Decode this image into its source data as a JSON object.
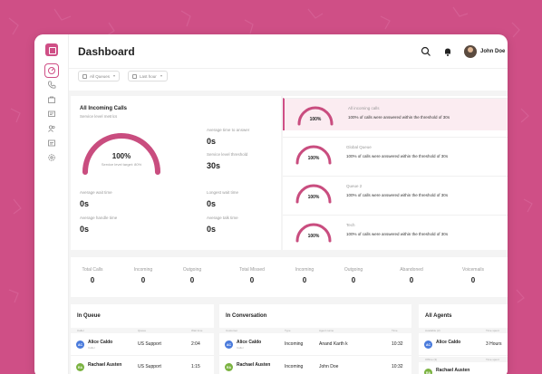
{
  "colors": {
    "brand": "#cf4f86",
    "gauge": "#c94d7f",
    "avatar_blue": "#4a7bdc",
    "avatar_green": "#7bb341"
  },
  "sidebar": {
    "icons": [
      "dashboard-icon",
      "phone-icon",
      "bag-icon",
      "message-icon",
      "users-icon",
      "report-icon",
      "gear-icon"
    ]
  },
  "header": {
    "title": "Dashboard",
    "user_name": "John Doe"
  },
  "filters": {
    "queues": "All Queues",
    "period": "Last hour"
  },
  "service": {
    "title": "All Incoming Calls",
    "subtitle": "Service level metrics",
    "gauge_value": "100%",
    "gauge_fraction": 1.0,
    "gauge_target": "Service level target: 80%",
    "metrics": [
      {
        "label": "Average time to answer",
        "value": "0s"
      },
      {
        "label": "Service level threshold",
        "value": "30s"
      },
      {
        "label": "Average wait time",
        "value": "0s"
      },
      {
        "label": "Longest wait time",
        "value": "0s"
      },
      {
        "label": "Average handle time",
        "value": "0s"
      },
      {
        "label": "Average talk time",
        "value": "0s"
      }
    ]
  },
  "queues": [
    {
      "name": "All incoming calls",
      "value": "100%",
      "fraction": 1.0,
      "desc": "100% of calls were answered within the threshold of 30s"
    },
    {
      "name": "Global Queue",
      "value": "100%",
      "fraction": 1.0,
      "desc": "100% of calls were answered within the threshold of 30s"
    },
    {
      "name": "Queue 2",
      "value": "100%",
      "fraction": 1.0,
      "desc": "100% of calls were answered within the threshold of 30s"
    },
    {
      "name": "Tech",
      "value": "100%",
      "fraction": 1.0,
      "desc": "100% of calls were answered within the threshold of 30s"
    }
  ],
  "totals": [
    {
      "label": "Total Calls",
      "value": "0"
    },
    {
      "label": "Incoming",
      "value": "0"
    },
    {
      "label": "Outgoing",
      "value": "0"
    },
    {
      "label": "Total Missed",
      "value": "0"
    },
    {
      "label": "Incoming",
      "value": "0"
    },
    {
      "label": "Outgoing",
      "value": "0"
    },
    {
      "label": "Abandoned",
      "value": "0"
    },
    {
      "label": "Voicemails",
      "value": "0"
    }
  ],
  "in_queue": {
    "title": "In Queue",
    "headers": [
      "Caller",
      "Queue",
      "Wait time"
    ],
    "rows": [
      {
        "initials": "AC",
        "name": "Alice Caldo",
        "sub": "Caller",
        "queue": "US Support",
        "time": "2:04"
      },
      {
        "initials": "RA",
        "name": "Rachael Austen",
        "sub": "",
        "queue": "US Support",
        "time": "1:15"
      }
    ]
  },
  "in_conversation": {
    "title": "In Conversation",
    "headers": [
      "Customer",
      "Type",
      "Agent name",
      "Time"
    ],
    "rows": [
      {
        "initials": "AC",
        "name": "Alice Caldo",
        "sub": "Caller",
        "type": "Incoming",
        "agent": "Anand Karth k",
        "time": "10:32"
      },
      {
        "initials": "RA",
        "name": "Rachael Austen",
        "sub": "",
        "type": "Incoming",
        "agent": "John Doe",
        "time": "10:32"
      }
    ]
  },
  "all_agents": {
    "title": "All Agents",
    "headers": [
      "Available (2)",
      "Time spent"
    ],
    "headers2": [
      "Offline (3)",
      "Time spent"
    ],
    "rows": [
      {
        "initials": "AC",
        "name": "Alice Caldo",
        "time": "3 Hours"
      },
      {
        "initials": "RA",
        "name": "Rachael Austen",
        "time": ""
      }
    ]
  }
}
